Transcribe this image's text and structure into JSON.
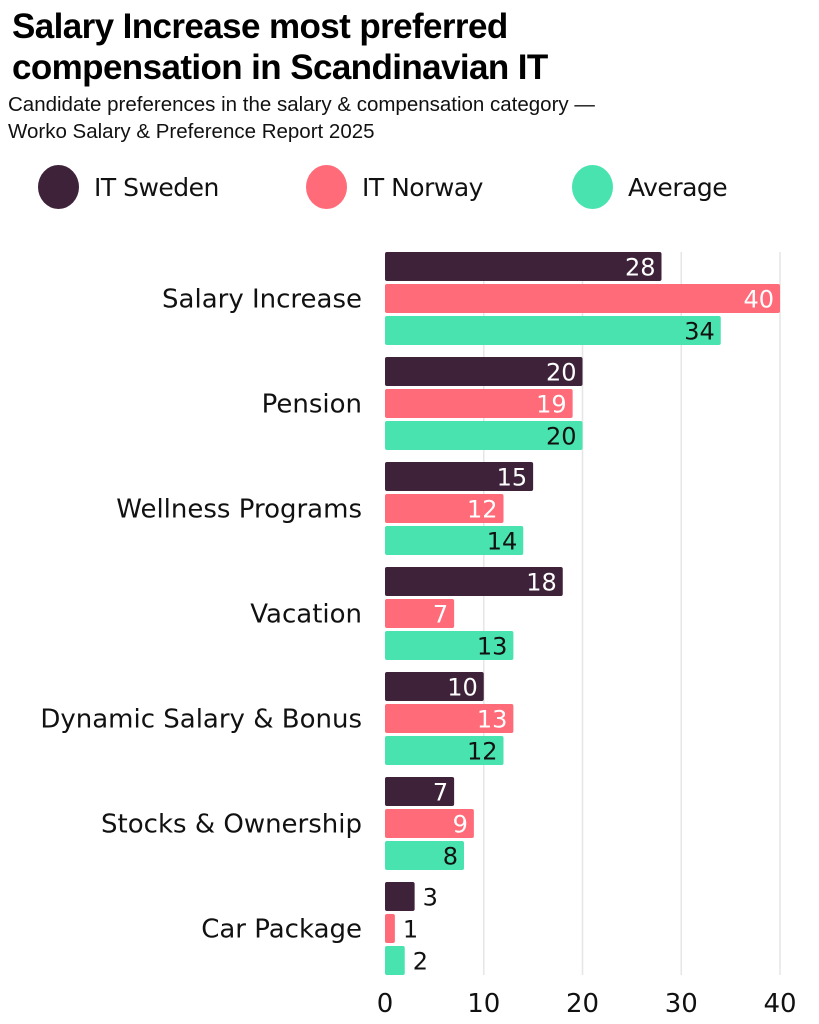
{
  "header": {
    "title_lines": [
      "Salary Increase most preferred",
      "compensation in Scandinavian IT"
    ],
    "subtitle_lines": [
      "Candidate preferences in the salary & compensation category —",
      "Worko Salary & Preference Report 2025"
    ]
  },
  "legend": [
    {
      "name": "IT Sweden",
      "color": "#3e2239"
    },
    {
      "name": "IT Norway",
      "color": "#ff6b78"
    },
    {
      "name": "Average",
      "color": "#48e3ae"
    }
  ],
  "chart_data": {
    "type": "bar",
    "orientation": "horizontal",
    "title": "Salary Increase most preferred compensation in Scandinavian IT",
    "subtitle": "Candidate preferences in the salary & compensation category — Worko Salary & Preference Report 2025",
    "xlabel": "",
    "ylabel": "",
    "categories": [
      "Salary Increase",
      "Pension",
      "Wellness Programs",
      "Vacation",
      "Dynamic Salary & Bonus",
      "Stocks & Ownership",
      "Car Package"
    ],
    "series": [
      {
        "name": "IT Sweden",
        "color": "#3e2239",
        "label_color": "#ffffff",
        "values": [
          28,
          20,
          15,
          18,
          10,
          7,
          3
        ]
      },
      {
        "name": "IT Norway",
        "color": "#ff6b78",
        "label_color": "#ffffff",
        "values": [
          40,
          19,
          12,
          7,
          13,
          9,
          1
        ]
      },
      {
        "name": "Average",
        "color": "#48e3ae",
        "label_color": "#111111",
        "values": [
          34,
          20,
          14,
          13,
          12,
          8,
          2
        ]
      }
    ],
    "xlim": [
      0,
      40
    ],
    "xticks": [
      0,
      10,
      20,
      30,
      40
    ],
    "grid": "vertical",
    "gridline_color": "#e6e6e6",
    "legend_position": "top-left",
    "data_labels": "inside-end"
  }
}
